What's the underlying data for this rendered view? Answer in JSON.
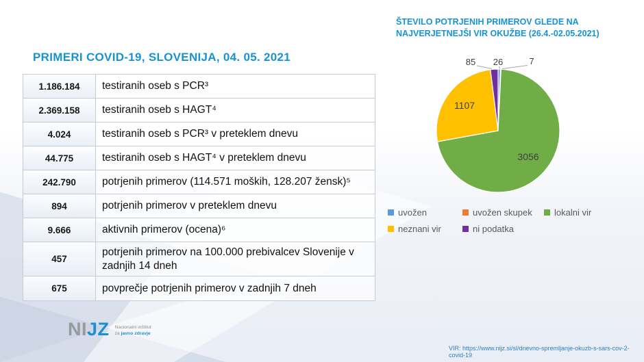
{
  "slide": {
    "title": "PRIMERI COVID-19, SLOVENIJA, 04. 05. 2021"
  },
  "table": {
    "rows": [
      {
        "value": "1.186.184",
        "label": "testiranih oseb s PCR³"
      },
      {
        "value": "2.369.158",
        "label": "testiranih oseb s HAGT⁴"
      },
      {
        "value": "4.024",
        "label": "testiranih oseb s PCR³ v preteklem dnevu"
      },
      {
        "value": "44.775",
        "label": "testiranih oseb s HAGT⁴ v preteklem dnevu"
      },
      {
        "value": "242.790",
        "label": "potrjenih primerov  (114.571 moških, 128.207 žensk)⁵"
      },
      {
        "value": "894",
        "label": "potrjenih primerov v preteklem dnevu"
      },
      {
        "value": "9.666",
        "label": "aktivnih primerov (ocena)⁶"
      },
      {
        "value": "457",
        "label": "potrjenih primerov na 100.000 prebivalcev Slovenije v zadnjih 14 dneh"
      },
      {
        "value": "675",
        "label": "povprečje potrjenih primerov v zadnjih 7 dneh"
      }
    ]
  },
  "chart": {
    "title_line1": "ŠTEVILO POTRJENIH PRIMEROV GLEDE NA",
    "title_line2": "NAJVERJETNEJŠI VIR OKUŽBE (26.4.-02.05.2021)"
  },
  "chart_data": {
    "type": "pie",
    "title": "ŠTEVILO POTRJENIH PRIMEROV GLEDE NA NAJVERJETNEJŠI VIR OKUŽBE (26.4.-02.05.2021)",
    "categories": [
      "uvožen",
      "uvožen skupek",
      "lokalni vir",
      "neznani vir",
      "ni podatka"
    ],
    "values": [
      26,
      7,
      3056,
      1107,
      85
    ],
    "colors": [
      "#5b9bd5",
      "#ed7d31",
      "#70ad47",
      "#ffc000",
      "#7030a0"
    ],
    "total": 4281,
    "start_angle_deg": 0,
    "direction": "clockwise",
    "data_labels": "values",
    "legend_position": "bottom"
  },
  "footer": {
    "logo_gray": "NI",
    "logo_blue": "JZ",
    "logo_sub_line1": "Nacionalni inštitut",
    "logo_sub_line2_prefix": "za ",
    "logo_sub_line2_bold": "javno zdravje",
    "source": "VIR: https://www.nijz.si/sl/dnevno-spremljanje-okuzb-s-sars-cov-2-covid-19"
  },
  "colors": {
    "accent_blue": "#1793d3",
    "legend_text": "#595959",
    "data_label": "#404040",
    "table_border": "#c6cbd5"
  }
}
